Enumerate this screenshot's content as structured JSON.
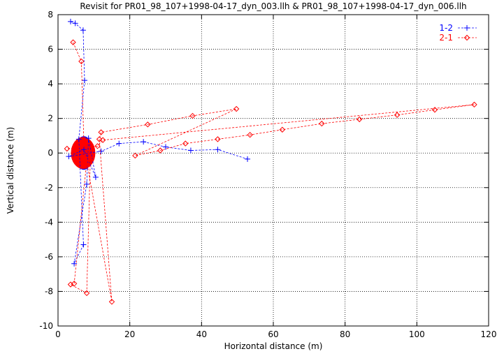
{
  "chart_data": {
    "type": "scatter",
    "title": "Revisit for PR01_98_107+1998-04-17_dyn_003.llh & PR01_98_107+1998-04-17_dyn_006.llh",
    "xlabel": "Horizontal distance (m)",
    "ylabel": "Vertical distance (m)",
    "xlim": [
      0,
      120
    ],
    "ylim": [
      -10,
      8
    ],
    "x_ticks": [
      0,
      20,
      40,
      60,
      80,
      100,
      120
    ],
    "y_ticks": [
      -10,
      -8,
      -6,
      -4,
      -2,
      0,
      2,
      4,
      6,
      8
    ],
    "grid": "dotted",
    "legend_position": "top-right",
    "series": [
      {
        "name": "1-2",
        "color": "#0000ff",
        "marker": "plus",
        "line": "dashed",
        "cluster": {
          "center": [
            7.2,
            0
          ],
          "rx": 2.4,
          "ry": 0.95
        },
        "x": [
          3.5,
          4.8,
          7.0,
          7.4,
          5.8,
          7.1,
          4.5,
          8.0,
          8.5,
          10.5,
          7.2,
          3.0,
          12.0,
          17.0,
          23.8,
          30.0,
          37.0,
          44.5,
          52.8
        ],
        "y": [
          7.6,
          7.5,
          7.1,
          4.2,
          0.8,
          -5.3,
          -6.4,
          -1.8,
          0.85,
          -1.4,
          0.2,
          -0.2,
          0.1,
          0.55,
          0.65,
          0.35,
          0.15,
          0.2,
          -0.35
        ]
      },
      {
        "name": "2-1",
        "color": "#ff0000",
        "marker": "diamond",
        "line": "dashed",
        "cluster": {
          "center": [
            7.0,
            0
          ],
          "rx": 3.3,
          "ry": 0.9
        },
        "x": [
          4.2,
          6.5,
          7.2,
          9.0,
          8.0,
          3.5,
          4.5,
          8.0,
          15.0,
          11.5,
          12.0,
          25.0,
          37.5,
          49.7,
          21.5,
          28.5,
          35.5,
          44.5,
          53.5,
          62.5,
          73.5,
          84.0,
          94.5,
          105.0,
          116.0,
          12.5,
          11.0,
          2.5
        ],
        "y": [
          6.4,
          5.3,
          0.7,
          -0.4,
          -8.1,
          -7.6,
          -7.55,
          -0.5,
          -8.6,
          0.8,
          1.2,
          1.65,
          2.15,
          2.55,
          -0.15,
          0.15,
          0.55,
          0.8,
          1.05,
          1.35,
          1.7,
          1.95,
          2.2,
          2.5,
          2.8,
          0.75,
          0.4,
          0.25
        ]
      }
    ]
  }
}
